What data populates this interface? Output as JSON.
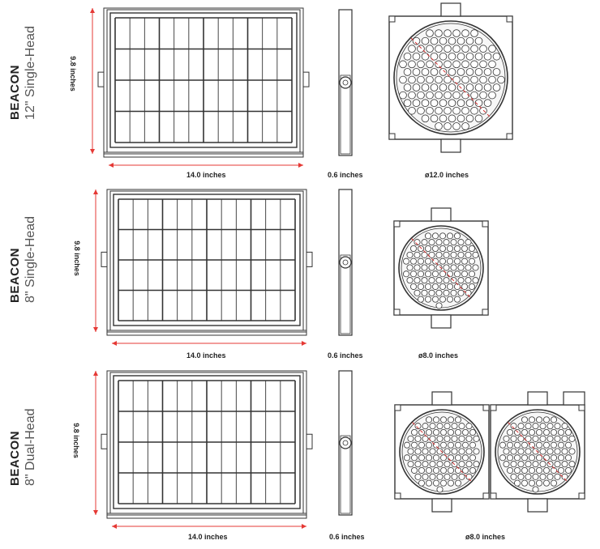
{
  "rows": [
    {
      "brand": "BEACON",
      "model": "12\" Single-Head",
      "height_label": "9.8 inches",
      "width_label": "14.0 inches",
      "depth_label": "0.6 inches",
      "beacon_label": "ø12.0 inches",
      "heads": 1
    },
    {
      "brand": "BEACON",
      "model": "8\" Single-Head",
      "height_label": "9.8 inches",
      "width_label": "14.0 inches",
      "depth_label": "0.6 inches",
      "beacon_label": "ø8.0 inches",
      "heads": 1
    },
    {
      "brand": "BEACON",
      "model": "8\" Dual-Head",
      "height_label": "9.8 inches",
      "width_label": "14.0 inches",
      "depth_label": "0.6 inches",
      "beacon_label": "ø8.0 inches",
      "heads": 2
    }
  ],
  "colors": {
    "line": "#333333",
    "dimension": "#e53935",
    "accent": "#d32f2f"
  }
}
